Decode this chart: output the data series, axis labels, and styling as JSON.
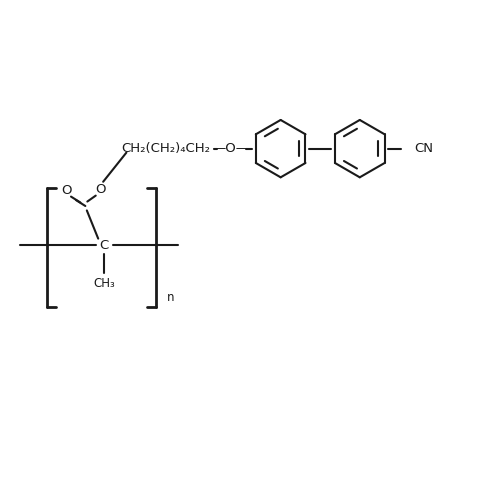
{
  "bg_color": "#ffffff",
  "line_color": "#1a1a1a",
  "line_width": 1.5,
  "font_size": 9.5,
  "font_size_sub": 8.5,
  "figsize": [
    5.0,
    5.0
  ],
  "dpi": 100,
  "xlim": [
    0,
    10
  ],
  "ylim": [
    0,
    10
  ]
}
